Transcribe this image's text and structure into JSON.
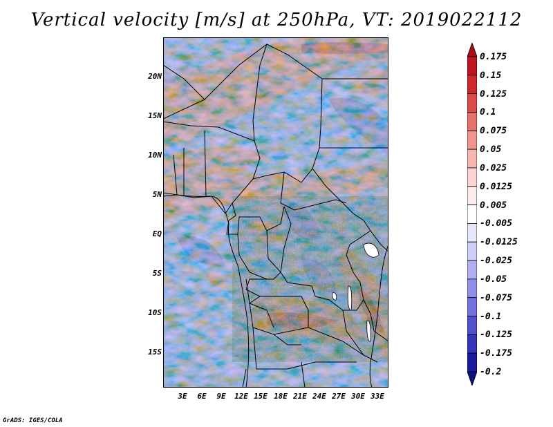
{
  "title": "Vertical velocity [m/s] at 250hPa, VT: 2019022112",
  "footer": "GrADS: IGES/COLA",
  "lat_labels": [
    "20N",
    "15N",
    "10N",
    "5N",
    "EQ",
    "5S",
    "10S",
    "15S"
  ],
  "lon_labels": [
    "3E",
    "6E",
    "9E",
    "12E",
    "15E",
    "18E",
    "21E",
    "24E",
    "27E",
    "30E",
    "33E"
  ],
  "colorbar": {
    "labels": [
      "0.175",
      "0.15",
      "0.125",
      "0.1",
      "0.075",
      "0.05",
      "0.025",
      "0.0125",
      "0.005",
      "-0.005",
      "-0.0125",
      "-0.025",
      "-0.05",
      "-0.075",
      "-0.1",
      "-0.125",
      "-0.175",
      "-0.2"
    ],
    "colors": [
      "#a50f15",
      "#c0151e",
      "#d0282c",
      "#de4a46",
      "#e8706a",
      "#f0948e",
      "#f6b6b1",
      "#fad5d2",
      "#fdeceb",
      "#ffffff",
      "#e6e6fb",
      "#cdcdf6",
      "#afaff0",
      "#9090e8",
      "#7171df",
      "#5151d0",
      "#3434bd",
      "#1a1aa0",
      "#10107a"
    ]
  }
}
